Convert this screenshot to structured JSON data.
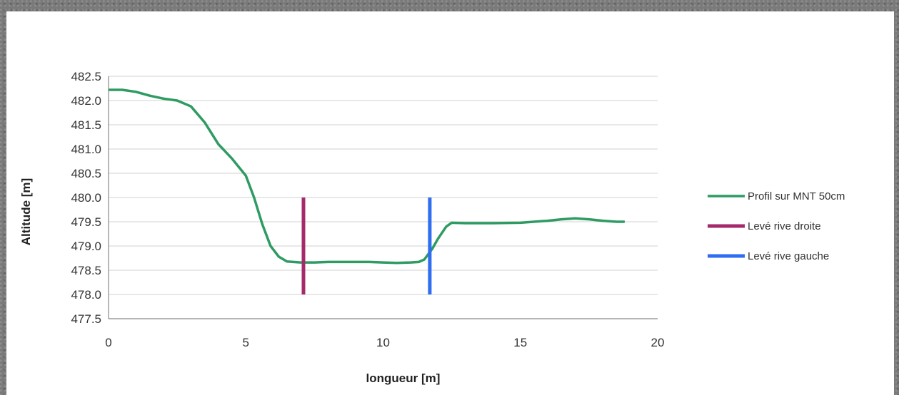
{
  "chart_data": {
    "type": "line",
    "title": "",
    "xlabel": "longueur [m]",
    "ylabel": "Altitude [m]",
    "xlim": [
      0,
      20
    ],
    "ylim": [
      477.5,
      482.5
    ],
    "x_ticks": [
      "0",
      "5",
      "10",
      "15",
      "20"
    ],
    "y_ticks": [
      "477.5",
      "478.0",
      "478.5",
      "479.0",
      "479.5",
      "480.0",
      "480.5",
      "481.0",
      "481.5",
      "482.0",
      "482.5"
    ],
    "grid": "horizontal",
    "legend_position": "right",
    "series": [
      {
        "name": "Profil sur MNT 50cm",
        "color": "#2e9b62",
        "x": [
          0,
          0.5,
          1,
          1.5,
          2,
          2.5,
          3,
          3.5,
          4,
          4.5,
          5,
          5.3,
          5.6,
          5.9,
          6.2,
          6.5,
          7,
          7.5,
          8,
          8.5,
          9,
          9.5,
          10,
          10.5,
          11,
          11.3,
          11.5,
          11.8,
          12.0,
          12.3,
          12.5,
          13,
          14,
          15,
          16,
          16.5,
          17,
          17.5,
          18,
          18.5,
          18.8
        ],
        "y": [
          482.22,
          482.22,
          482.18,
          482.1,
          482.04,
          482.0,
          481.88,
          481.55,
          481.1,
          480.8,
          480.45,
          480.0,
          479.45,
          479.0,
          478.78,
          478.68,
          478.66,
          478.66,
          478.67,
          478.67,
          478.67,
          478.67,
          478.66,
          478.65,
          478.66,
          478.67,
          478.72,
          478.95,
          479.15,
          479.4,
          479.48,
          479.47,
          479.47,
          479.48,
          479.52,
          479.55,
          479.57,
          479.55,
          479.52,
          479.5,
          479.5
        ]
      },
      {
        "name": "Levé rive droite",
        "color": "#a52a6c",
        "x": [
          7.1,
          7.1
        ],
        "y": [
          478.0,
          480.0
        ]
      },
      {
        "name": "Levé rive gauche",
        "color": "#2f6ef0",
        "x": [
          11.7,
          11.7
        ],
        "y": [
          478.0,
          480.0
        ]
      }
    ]
  }
}
